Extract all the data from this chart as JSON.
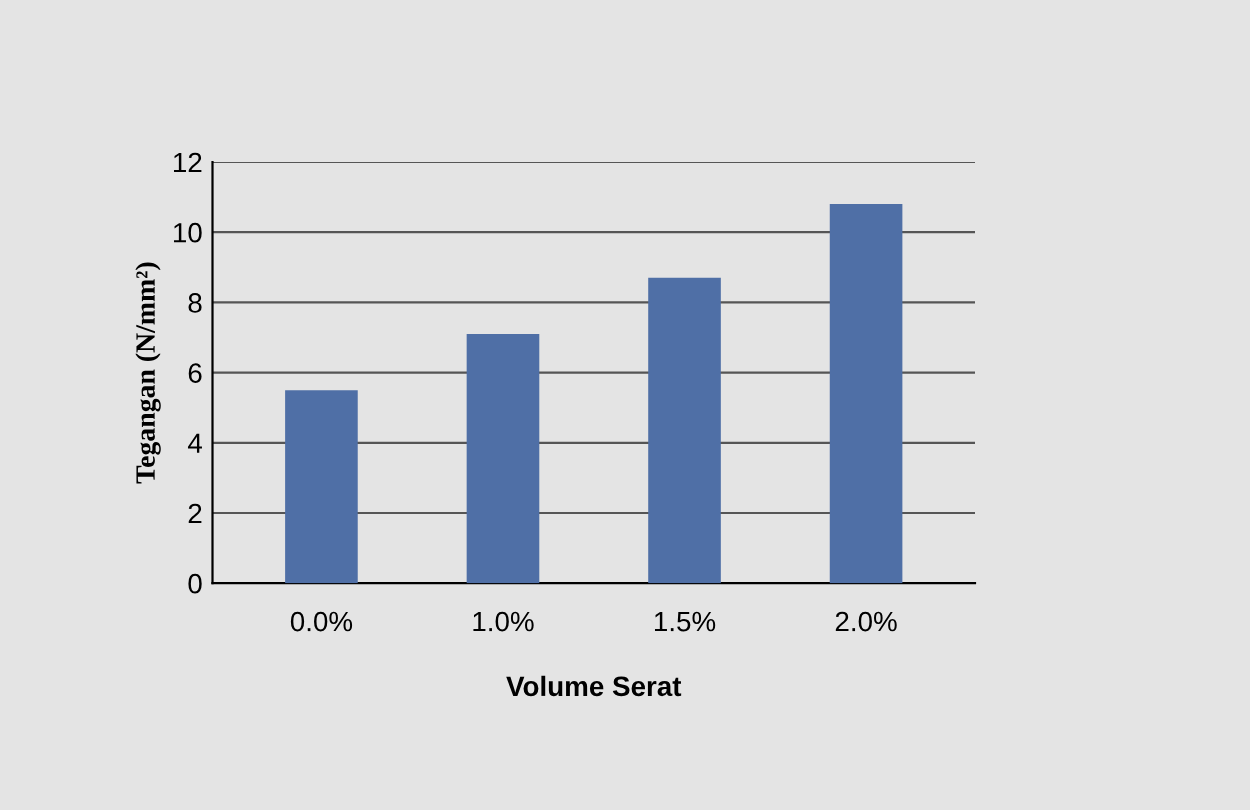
{
  "chart_data": {
    "type": "bar",
    "categories": [
      "0.0%",
      "1.0%",
      "1.5%",
      "2.0%"
    ],
    "values": [
      5.5,
      7.1,
      8.7,
      10.8
    ],
    "color": "#4f6fa6",
    "xlabel": "Volume Serat",
    "ylabel": "Tegangan (N/mm²)",
    "ylim": [
      0,
      12
    ],
    "yticks": [
      0,
      2,
      4,
      6,
      8,
      10,
      12
    ],
    "grid": "y",
    "legend": false
  }
}
